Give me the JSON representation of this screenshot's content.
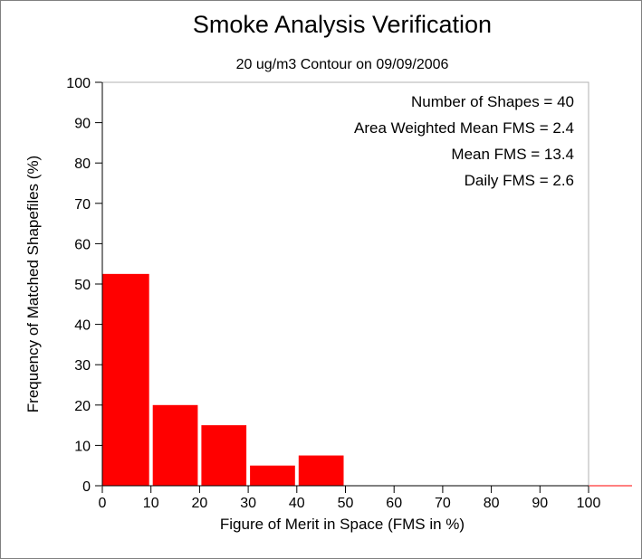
{
  "chart_data": {
    "type": "bar",
    "title": "Smoke Analysis Verification",
    "subtitle": "20 ug/m3 Contour on 09/09/2006",
    "xlabel": "Figure of Merit in Space (FMS in %)",
    "ylabel": "Frequency of Matched Shapefiles (%)",
    "xlim": [
      0,
      100
    ],
    "ylim": [
      0,
      100
    ],
    "xticks": [
      0,
      10,
      20,
      30,
      40,
      50,
      60,
      70,
      80,
      90,
      100
    ],
    "yticks": [
      0,
      10,
      20,
      30,
      40,
      50,
      60,
      70,
      80,
      90,
      100
    ],
    "bins": [
      {
        "from": 0,
        "to": 10,
        "value": 52.5
      },
      {
        "from": 10,
        "to": 20,
        "value": 20
      },
      {
        "from": 20,
        "to": 30,
        "value": 15
      },
      {
        "from": 30,
        "to": 40,
        "value": 5
      },
      {
        "from": 40,
        "to": 50,
        "value": 7.5
      },
      {
        "from": 50,
        "to": 60,
        "value": 0
      },
      {
        "from": 60,
        "to": 70,
        "value": 0
      },
      {
        "from": 70,
        "to": 80,
        "value": 0
      },
      {
        "from": 80,
        "to": 90,
        "value": 0
      },
      {
        "from": 90,
        "to": 100,
        "value": 0
      }
    ],
    "bar_color": "#ff0000",
    "stats": [
      "Number of Shapes = 40",
      "Area Weighted Mean FMS = 2.4",
      "Mean FMS = 13.4",
      "Daily FMS = 2.6"
    ],
    "grid": false
  }
}
